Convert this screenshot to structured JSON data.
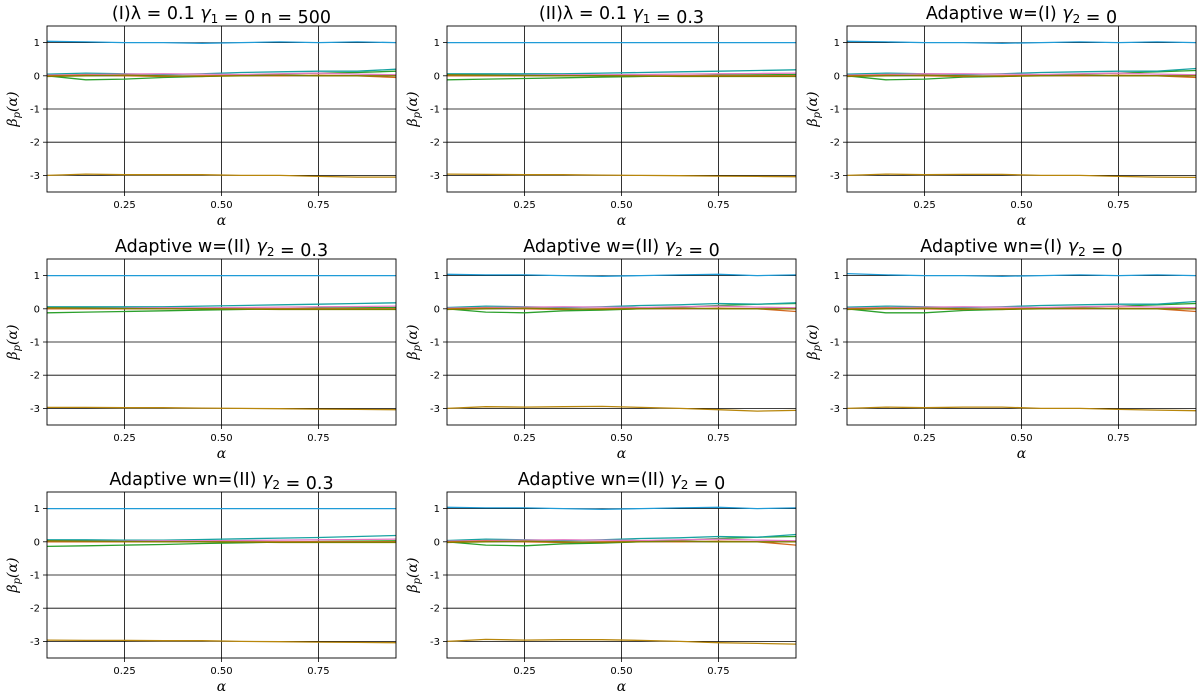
{
  "figure": {
    "xlabel": "α",
    "ylabel": "βp(α)"
  },
  "chart_data": [
    {
      "type": "line",
      "title": "(I)λ = 0.1   γ1 = 0   n = 500",
      "xlabel": "α",
      "ylabel": "βp(α)",
      "xlim": [
        0.05,
        0.95
      ],
      "ylim": [
        -3.5,
        1.5
      ],
      "xticks": [
        "0.25",
        "0.50",
        "0.75"
      ],
      "yticks": [
        "1",
        "0",
        "-1",
        "-2",
        "-3"
      ],
      "grid": "y-major-and-x-ticks",
      "x": [
        0.05,
        0.15,
        0.25,
        0.35,
        0.45,
        0.55,
        0.65,
        0.75,
        0.85,
        0.95
      ],
      "series": [
        {
          "color": "#1f9bd7",
          "values": [
            1.04,
            1.02,
            1.0,
            1.0,
            0.98,
            1.0,
            1.02,
            1.0,
            1.02,
            1.0
          ]
        },
        {
          "color": "#b8860b",
          "values": [
            -3.0,
            -2.96,
            -2.98,
            -2.98,
            -2.98,
            -3.0,
            -3.0,
            -3.03,
            -3.05,
            -3.05
          ]
        },
        {
          "color": "#2ca02c",
          "values": [
            0.0,
            -0.12,
            -0.1,
            -0.05,
            -0.02,
            0.02,
            0.05,
            0.08,
            0.1,
            0.14
          ]
        },
        {
          "color": "#17a2a2",
          "values": [
            0.05,
            0.08,
            0.06,
            0.04,
            0.06,
            0.1,
            0.12,
            0.14,
            0.14,
            0.2
          ]
        },
        {
          "color": "#e377c2",
          "values": [
            0.02,
            0.04,
            0.05,
            0.06,
            0.05,
            0.04,
            0.06,
            0.08,
            0.05,
            0.03
          ]
        },
        {
          "color": "#d2691e",
          "values": [
            0.0,
            0.02,
            0.0,
            -0.02,
            0.0,
            0.01,
            0.0,
            0.02,
            0.0,
            -0.05
          ]
        },
        {
          "color": "#7f7f00",
          "values": [
            -0.02,
            0.0,
            0.02,
            0.0,
            -0.02,
            0.0,
            0.02,
            0.0,
            0.0,
            0.0
          ]
        }
      ]
    },
    {
      "type": "line",
      "title": "(II)λ = 0.1   γ1 = 0.3",
      "xlabel": "α",
      "ylabel": "βp(α)",
      "xlim": [
        0.05,
        0.95
      ],
      "ylim": [
        -3.5,
        1.5
      ],
      "xticks": [
        "0.25",
        "0.50",
        "0.75"
      ],
      "yticks": [
        "1",
        "0",
        "-1",
        "-2",
        "-3"
      ],
      "grid": "y-major-and-x-ticks",
      "x": [
        0.05,
        0.15,
        0.25,
        0.35,
        0.45,
        0.55,
        0.65,
        0.75,
        0.85,
        0.95
      ],
      "series": [
        {
          "color": "#1f9bd7",
          "values": [
            1.0,
            1.0,
            1.0,
            1.0,
            1.0,
            1.0,
            1.0,
            1.0,
            1.0,
            1.0
          ]
        },
        {
          "color": "#b8860b",
          "values": [
            -2.96,
            -2.97,
            -2.98,
            -2.98,
            -2.99,
            -3.0,
            -3.01,
            -3.02,
            -3.03,
            -3.04
          ]
        },
        {
          "color": "#2ca02c",
          "values": [
            -0.12,
            -0.1,
            -0.08,
            -0.06,
            -0.04,
            -0.02,
            0.0,
            0.02,
            0.03,
            0.04
          ]
        },
        {
          "color": "#17a2a2",
          "values": [
            0.06,
            0.06,
            0.06,
            0.06,
            0.08,
            0.1,
            0.12,
            0.14,
            0.16,
            0.18
          ]
        },
        {
          "color": "#e377c2",
          "values": [
            0.02,
            0.02,
            0.02,
            0.03,
            0.03,
            0.04,
            0.05,
            0.06,
            0.07,
            0.08
          ]
        },
        {
          "color": "#d2691e",
          "values": [
            0.0,
            0.0,
            0.0,
            0.0,
            0.0,
            0.0,
            0.0,
            0.0,
            0.0,
            0.0
          ]
        },
        {
          "color": "#7f7f00",
          "values": [
            0.03,
            0.02,
            0.01,
            0.0,
            0.0,
            -0.01,
            -0.02,
            -0.02,
            -0.02,
            -0.02
          ]
        }
      ]
    },
    {
      "type": "line",
      "title": "Adaptive w=(I) γ2 = 0",
      "xlabel": "α",
      "ylabel": "βp(α)",
      "xlim": [
        0.05,
        0.95
      ],
      "ylim": [
        -3.5,
        1.5
      ],
      "xticks": [
        "0.25",
        "0.50",
        "0.75"
      ],
      "yticks": [
        "1",
        "0",
        "-1",
        "-2",
        "-3"
      ],
      "grid": "y-major-and-x-ticks",
      "x": [
        0.05,
        0.15,
        0.25,
        0.35,
        0.45,
        0.55,
        0.65,
        0.75,
        0.85,
        0.95
      ],
      "series": [
        {
          "color": "#1f9bd7",
          "values": [
            1.04,
            1.02,
            1.0,
            1.0,
            0.98,
            1.0,
            1.02,
            1.0,
            1.02,
            1.0
          ]
        },
        {
          "color": "#b8860b",
          "values": [
            -3.0,
            -2.96,
            -2.98,
            -2.97,
            -2.97,
            -3.0,
            -3.0,
            -3.03,
            -3.05,
            -3.06
          ]
        },
        {
          "color": "#2ca02c",
          "values": [
            0.0,
            -0.12,
            -0.1,
            -0.04,
            -0.02,
            0.02,
            0.05,
            0.08,
            0.12,
            0.16
          ]
        },
        {
          "color": "#17a2a2",
          "values": [
            0.05,
            0.08,
            0.06,
            0.04,
            0.06,
            0.1,
            0.12,
            0.14,
            0.14,
            0.22
          ]
        },
        {
          "color": "#e377c2",
          "values": [
            0.02,
            0.04,
            0.06,
            0.06,
            0.05,
            0.04,
            0.06,
            0.08,
            0.05,
            0.03
          ]
        },
        {
          "color": "#d2691e",
          "values": [
            0.0,
            0.02,
            0.0,
            -0.02,
            0.0,
            0.01,
            0.0,
            0.02,
            0.0,
            -0.05
          ]
        },
        {
          "color": "#7f7f00",
          "values": [
            -0.02,
            0.0,
            0.02,
            0.0,
            -0.02,
            0.0,
            0.02,
            0.0,
            0.0,
            0.0
          ]
        }
      ]
    },
    {
      "type": "line",
      "title": "Adaptive w=(II) γ2 = 0.3",
      "xlabel": "α",
      "ylabel": "βp(α)",
      "xlim": [
        0.05,
        0.95
      ],
      "ylim": [
        -3.5,
        1.5
      ],
      "xticks": [
        "0.25",
        "0.50",
        "0.75"
      ],
      "yticks": [
        "1",
        "0",
        "-1",
        "-2",
        "-3"
      ],
      "grid": "y-major-and-x-ticks",
      "x": [
        0.05,
        0.15,
        0.25,
        0.35,
        0.45,
        0.55,
        0.65,
        0.75,
        0.85,
        0.95
      ],
      "series": [
        {
          "color": "#1f9bd7",
          "values": [
            1.0,
            1.0,
            1.0,
            1.0,
            1.0,
            1.0,
            1.0,
            1.0,
            1.0,
            1.0
          ]
        },
        {
          "color": "#b8860b",
          "values": [
            -2.97,
            -2.97,
            -2.98,
            -2.98,
            -2.99,
            -3.0,
            -3.01,
            -3.02,
            -3.03,
            -3.04
          ]
        },
        {
          "color": "#2ca02c",
          "values": [
            -0.12,
            -0.1,
            -0.08,
            -0.06,
            -0.04,
            -0.02,
            0.0,
            0.02,
            0.03,
            0.04
          ]
        },
        {
          "color": "#17a2a2",
          "values": [
            0.06,
            0.06,
            0.06,
            0.06,
            0.08,
            0.1,
            0.12,
            0.14,
            0.16,
            0.18
          ]
        },
        {
          "color": "#e377c2",
          "values": [
            0.02,
            0.02,
            0.02,
            0.03,
            0.03,
            0.04,
            0.05,
            0.06,
            0.07,
            0.08
          ]
        },
        {
          "color": "#d2691e",
          "values": [
            0.0,
            0.0,
            0.0,
            0.0,
            0.0,
            0.0,
            0.0,
            0.0,
            0.0,
            0.0
          ]
        },
        {
          "color": "#7f7f00",
          "values": [
            0.03,
            0.02,
            0.01,
            0.0,
            0.0,
            -0.01,
            -0.02,
            -0.02,
            -0.02,
            -0.02
          ]
        }
      ]
    },
    {
      "type": "line",
      "title": "Adaptive w=(II) γ2 = 0",
      "xlabel": "α",
      "ylabel": "βp(α)",
      "xlim": [
        0.05,
        0.95
      ],
      "ylim": [
        -3.5,
        1.5
      ],
      "xticks": [
        "0.25",
        "0.50",
        "0.75"
      ],
      "yticks": [
        "1",
        "0",
        "-1",
        "-2",
        "-3"
      ],
      "grid": "y-major-and-x-ticks",
      "x": [
        0.05,
        0.15,
        0.25,
        0.35,
        0.45,
        0.55,
        0.65,
        0.75,
        0.85,
        0.95
      ],
      "series": [
        {
          "color": "#1f9bd7",
          "values": [
            1.04,
            1.02,
            1.02,
            1.0,
            0.98,
            1.0,
            1.02,
            1.04,
            1.0,
            1.02
          ]
        },
        {
          "color": "#b8860b",
          "values": [
            -3.0,
            -2.95,
            -2.96,
            -2.95,
            -2.94,
            -2.97,
            -3.0,
            -3.04,
            -3.08,
            -3.06
          ]
        },
        {
          "color": "#2ca02c",
          "values": [
            0.0,
            -0.1,
            -0.12,
            -0.06,
            -0.04,
            0.0,
            0.05,
            0.1,
            0.14,
            0.16
          ]
        },
        {
          "color": "#17a2a2",
          "values": [
            0.04,
            0.08,
            0.06,
            0.04,
            0.06,
            0.1,
            0.12,
            0.16,
            0.14,
            0.18
          ]
        },
        {
          "color": "#e377c2",
          "values": [
            0.02,
            0.04,
            0.05,
            0.06,
            0.05,
            0.04,
            0.06,
            0.08,
            0.05,
            0.03
          ]
        },
        {
          "color": "#d2691e",
          "values": [
            0.0,
            0.02,
            0.0,
            -0.02,
            0.0,
            0.01,
            0.0,
            0.02,
            0.0,
            -0.08
          ]
        },
        {
          "color": "#7f7f00",
          "values": [
            -0.02,
            0.0,
            0.02,
            0.0,
            -0.02,
            0.0,
            0.02,
            0.0,
            0.0,
            0.0
          ]
        }
      ]
    },
    {
      "type": "line",
      "title": "Adaptive wn=(I) γ2 = 0",
      "xlabel": "α",
      "ylabel": "βp(α)",
      "xlim": [
        0.05,
        0.95
      ],
      "ylim": [
        -3.5,
        1.5
      ],
      "xticks": [
        "0.25",
        "0.50",
        "0.75"
      ],
      "yticks": [
        "1",
        "0",
        "-1",
        "-2",
        "-3"
      ],
      "grid": "y-major-and-x-ticks",
      "x": [
        0.05,
        0.15,
        0.25,
        0.35,
        0.45,
        0.55,
        0.65,
        0.75,
        0.85,
        0.95
      ],
      "series": [
        {
          "color": "#1f9bd7",
          "values": [
            1.06,
            1.02,
            1.0,
            1.0,
            0.98,
            1.0,
            1.02,
            1.0,
            1.02,
            1.0
          ]
        },
        {
          "color": "#b8860b",
          "values": [
            -3.0,
            -2.96,
            -2.98,
            -2.96,
            -2.96,
            -3.0,
            -3.0,
            -3.03,
            -3.05,
            -3.07
          ]
        },
        {
          "color": "#2ca02c",
          "values": [
            0.0,
            -0.12,
            -0.12,
            -0.05,
            -0.02,
            0.02,
            0.05,
            0.08,
            0.12,
            0.16
          ]
        },
        {
          "color": "#17a2a2",
          "values": [
            0.05,
            0.08,
            0.06,
            0.04,
            0.06,
            0.1,
            0.12,
            0.14,
            0.14,
            0.22
          ]
        },
        {
          "color": "#e377c2",
          "values": [
            0.02,
            0.04,
            0.05,
            0.06,
            0.05,
            0.04,
            0.06,
            0.08,
            0.05,
            0.03
          ]
        },
        {
          "color": "#d2691e",
          "values": [
            0.0,
            0.02,
            0.0,
            -0.02,
            0.0,
            0.01,
            0.0,
            0.02,
            0.0,
            -0.08
          ]
        },
        {
          "color": "#7f7f00",
          "values": [
            -0.02,
            0.0,
            0.02,
            0.0,
            -0.02,
            0.0,
            0.02,
            0.0,
            0.0,
            0.0
          ]
        }
      ]
    },
    {
      "type": "line",
      "title": "Adaptive wn=(II) γ2 = 0.3",
      "xlabel": "α",
      "ylabel": "βp(α)",
      "xlim": [
        0.05,
        0.95
      ],
      "ylim": [
        -3.5,
        1.5
      ],
      "xticks": [
        "0.25",
        "0.50",
        "0.75"
      ],
      "yticks": [
        "1",
        "0",
        "-1",
        "-2",
        "-3"
      ],
      "grid": "y-major-and-x-ticks",
      "x": [
        0.05,
        0.15,
        0.25,
        0.35,
        0.45,
        0.55,
        0.65,
        0.75,
        0.85,
        0.95
      ],
      "series": [
        {
          "color": "#1f9bd7",
          "values": [
            1.0,
            1.0,
            1.0,
            1.0,
            1.0,
            1.0,
            1.0,
            1.0,
            1.0,
            1.0
          ]
        },
        {
          "color": "#b8860b",
          "values": [
            -2.96,
            -2.97,
            -2.97,
            -2.98,
            -2.98,
            -3.0,
            -3.01,
            -3.02,
            -3.03,
            -3.04
          ]
        },
        {
          "color": "#2ca02c",
          "values": [
            -0.14,
            -0.12,
            -0.1,
            -0.08,
            -0.05,
            -0.03,
            -0.01,
            0.01,
            0.02,
            0.03
          ]
        },
        {
          "color": "#17a2a2",
          "values": [
            0.06,
            0.06,
            0.05,
            0.05,
            0.07,
            0.09,
            0.11,
            0.13,
            0.16,
            0.19
          ]
        },
        {
          "color": "#e377c2",
          "values": [
            0.02,
            0.02,
            0.02,
            0.03,
            0.03,
            0.04,
            0.05,
            0.06,
            0.07,
            0.08
          ]
        },
        {
          "color": "#d2691e",
          "values": [
            0.0,
            0.0,
            0.0,
            0.0,
            0.0,
            0.0,
            0.0,
            0.0,
            0.0,
            0.0
          ]
        },
        {
          "color": "#7f7f00",
          "values": [
            0.03,
            0.02,
            0.01,
            0.0,
            0.0,
            -0.01,
            -0.02,
            -0.02,
            -0.02,
            -0.02
          ]
        }
      ]
    },
    {
      "type": "line",
      "title": "Adaptive wn=(II) γ2 = 0",
      "xlabel": "α",
      "ylabel": "βp(α)",
      "xlim": [
        0.05,
        0.95
      ],
      "ylim": [
        -3.5,
        1.5
      ],
      "xticks": [
        "0.25",
        "0.50",
        "0.75"
      ],
      "yticks": [
        "1",
        "0",
        "-1",
        "-2",
        "-3"
      ],
      "grid": "y-major-and-x-ticks",
      "x": [
        0.05,
        0.15,
        0.25,
        0.35,
        0.45,
        0.55,
        0.65,
        0.75,
        0.85,
        0.95
      ],
      "series": [
        {
          "color": "#1f9bd7",
          "values": [
            1.04,
            1.02,
            1.02,
            1.0,
            0.98,
            1.0,
            1.02,
            1.04,
            1.0,
            1.02
          ]
        },
        {
          "color": "#b8860b",
          "values": [
            -3.0,
            -2.94,
            -2.96,
            -2.95,
            -2.95,
            -2.97,
            -3.0,
            -3.04,
            -3.06,
            -3.08
          ]
        },
        {
          "color": "#2ca02c",
          "values": [
            0.0,
            -0.1,
            -0.12,
            -0.06,
            -0.04,
            0.0,
            0.05,
            0.1,
            0.14,
            0.16
          ]
        },
        {
          "color": "#17a2a2",
          "values": [
            0.04,
            0.08,
            0.06,
            0.04,
            0.06,
            0.1,
            0.12,
            0.16,
            0.14,
            0.22
          ]
        },
        {
          "color": "#e377c2",
          "values": [
            0.02,
            0.04,
            0.05,
            0.06,
            0.05,
            0.04,
            0.06,
            0.08,
            0.05,
            0.03
          ]
        },
        {
          "color": "#d2691e",
          "values": [
            0.0,
            0.02,
            0.0,
            -0.02,
            0.0,
            0.01,
            0.0,
            0.02,
            0.0,
            -0.1
          ]
        },
        {
          "color": "#7f7f00",
          "values": [
            -0.02,
            0.0,
            0.02,
            0.0,
            -0.02,
            0.0,
            0.02,
            0.0,
            0.0,
            0.0
          ]
        }
      ]
    }
  ]
}
